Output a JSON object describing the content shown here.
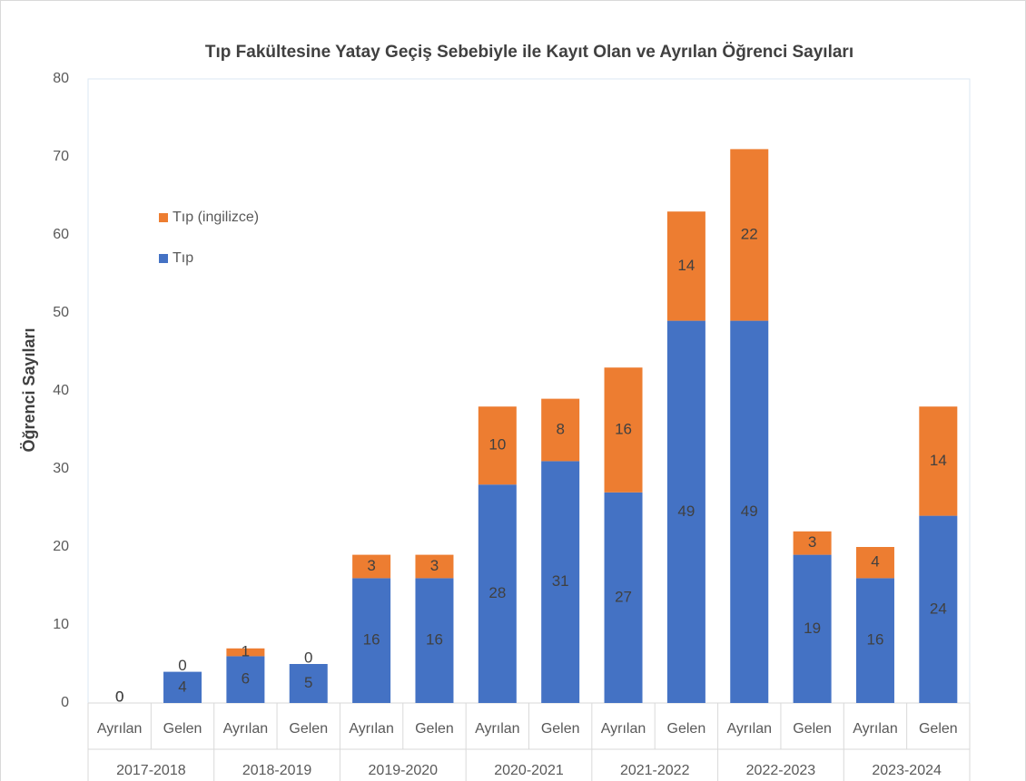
{
  "chart_data": {
    "type": "stacked_bar",
    "title": "Tıp Fakültesine Yatay Geçiş Sebebiyle ile Kayıt Olan ve Ayrılan Öğrenci Sayıları",
    "y_label": "Öğrenci Sayıları",
    "categories": [
      "Ayrılan",
      "Gelen",
      "Ayrılan",
      "Gelen",
      "Ayrılan",
      "Gelen",
      "Ayrılan",
      "Gelen",
      "Ayrılan",
      "Gelen",
      "Ayrılan",
      "Gelen",
      "Ayrılan",
      "Gelen"
    ],
    "groups": [
      "2017-2018",
      "2018-2019",
      "2019-2020",
      "2020-2021",
      "2021-2022",
      "2022-2023",
      "2023-2024"
    ],
    "series": [
      {
        "name": "Tıp",
        "color": "#4472c4",
        "values": [
          0,
          4,
          6,
          5,
          16,
          16,
          28,
          31,
          27,
          49,
          49,
          19,
          16,
          24
        ]
      },
      {
        "name": "Tıp (ingilizce)",
        "color": "#ed7d31",
        "values": [
          0,
          0,
          1,
          0,
          3,
          3,
          10,
          8,
          16,
          14,
          22,
          3,
          4,
          14
        ]
      }
    ],
    "ylim": [
      0,
      80
    ],
    "yticks": [
      0,
      10,
      20,
      30,
      40,
      50,
      60,
      70,
      80
    ],
    "grid": false,
    "legend": "upper left"
  }
}
